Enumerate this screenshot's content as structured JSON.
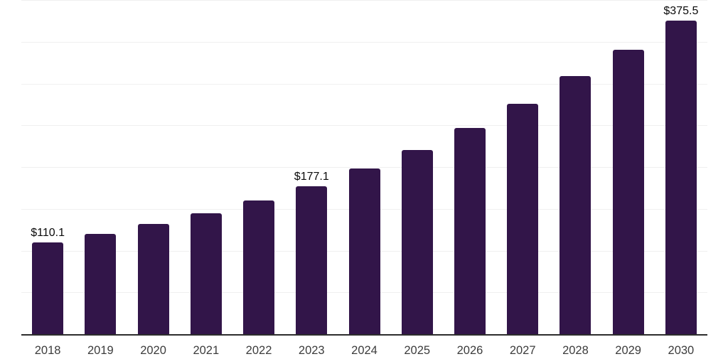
{
  "chart_data": {
    "type": "bar",
    "title": "",
    "xlabel": "",
    "ylabel": "",
    "categories": [
      "2018",
      "2019",
      "2020",
      "2021",
      "2022",
      "2023",
      "2024",
      "2025",
      "2026",
      "2027",
      "2028",
      "2029",
      "2030"
    ],
    "values": [
      110.1,
      119.9,
      131.7,
      144.6,
      160.0,
      177.1,
      197.9,
      220.6,
      246.5,
      276.0,
      309.1,
      340.4,
      375.5
    ],
    "value_labels": [
      {
        "index": 0,
        "text": "$110.1"
      },
      {
        "index": 5,
        "text": "$177.1"
      },
      {
        "index": 12,
        "text": "$375.5"
      }
    ],
    "ylim": [
      0,
      400
    ],
    "gridline_step": 50,
    "grid": "horizontal-only",
    "y_tick_labels_visible": false,
    "legend": "none",
    "bar_color": "#321549",
    "axis_color": "#2d2d2d",
    "gridline_color": "#f0f0f0",
    "value_label_color": "#0a0a0a",
    "tick_label_color": "#3c3c3c"
  }
}
